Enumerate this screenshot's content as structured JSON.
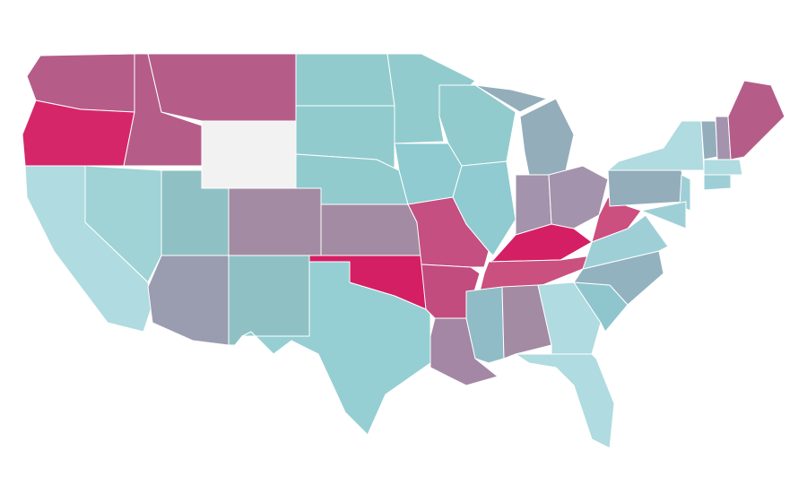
{
  "map": {
    "region_fills": [
      "#b55d88",
      "#d6266a",
      "#b55d88",
      "#b55d88",
      "#f2f2f2",
      "#92cbce",
      "#92cbce",
      "#92cbce",
      "#a38ba3",
      "#a38ba3",
      "#8fc1c4",
      "#9fd3d6",
      "#b0dbe0",
      "#9a9cb0",
      "#8fc1c4",
      "#96cfd3",
      "#d41f64",
      "#92cbce",
      "#8fcbd0",
      "#c44f80",
      "#c24c7e",
      "#a387a5",
      "#92cbce",
      "#8fcbd0",
      "#93adbb",
      "#93adbb",
      "#a493ac",
      "#a493ac",
      "#d41f64",
      "#c9507f",
      "#90bcc7",
      "#a38ba3",
      "#b0dbe0",
      "#b0dbe0",
      "#8fc5cd",
      "#93b2c0",
      "#9fcfd6",
      "#cb4f7f",
      "#93adbb",
      "#b0dbe0",
      "#9fcfd6",
      "#9fcfd6",
      "#93adbb",
      "#a493ac",
      "#b55d88",
      "#b0dbe0",
      "#9fcfd6"
    ]
  }
}
